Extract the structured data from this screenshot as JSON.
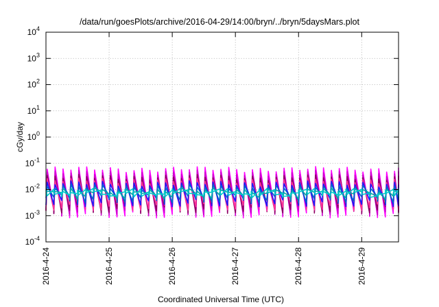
{
  "chart_data": {
    "type": "line",
    "title": "/data/run/goesPlots/archive/2016-04-29/14:00/bryn/../bryn/5daysMars.plot",
    "xlabel": "Coordinated Universal Time (UTC)",
    "ylabel": "cGy/day",
    "y_scale": "log",
    "ylim": [
      0.0001,
      10000
    ],
    "y_ticks": [
      {
        "value": 0.0001,
        "base": "10",
        "exp": "-4"
      },
      {
        "value": 0.001,
        "base": "10",
        "exp": "-3"
      },
      {
        "value": 0.01,
        "base": "10",
        "exp": "-2"
      },
      {
        "value": 0.1,
        "base": "10",
        "exp": "-1"
      },
      {
        "value": 1,
        "base": "10",
        "exp": "0"
      },
      {
        "value": 10,
        "base": "10",
        "exp": "1"
      },
      {
        "value": 100,
        "base": "10",
        "exp": "2"
      },
      {
        "value": 1000,
        "base": "10",
        "exp": "3"
      },
      {
        "value": 10000,
        "base": "10",
        "exp": "4"
      }
    ],
    "xlim": [
      "2016-04-24T00:00",
      "2016-04-29T14:00"
    ],
    "x_ticks": [
      "2016-4-24",
      "2016-4-25",
      "2016-4-26",
      "2016-4-27",
      "2016-4-28",
      "2016-4-29"
    ],
    "grid": true,
    "series_colors": [
      "#ff00ff",
      "#cc00cc",
      "#8b0060",
      "#ff3399",
      "#1a1aff",
      "#0066cc",
      "#00aaaa",
      "#00cccc"
    ],
    "sawtooth": {
      "period_hours": 3,
      "peaks": [
        0.07,
        0.05,
        0.035,
        0.026,
        0.02,
        0.015,
        0.011,
        0.008
      ],
      "troughs": [
        0.0015,
        0.0018,
        0.0022,
        0.0028,
        0.004,
        0.0055,
        0.0075,
        0.01
      ]
    }
  }
}
